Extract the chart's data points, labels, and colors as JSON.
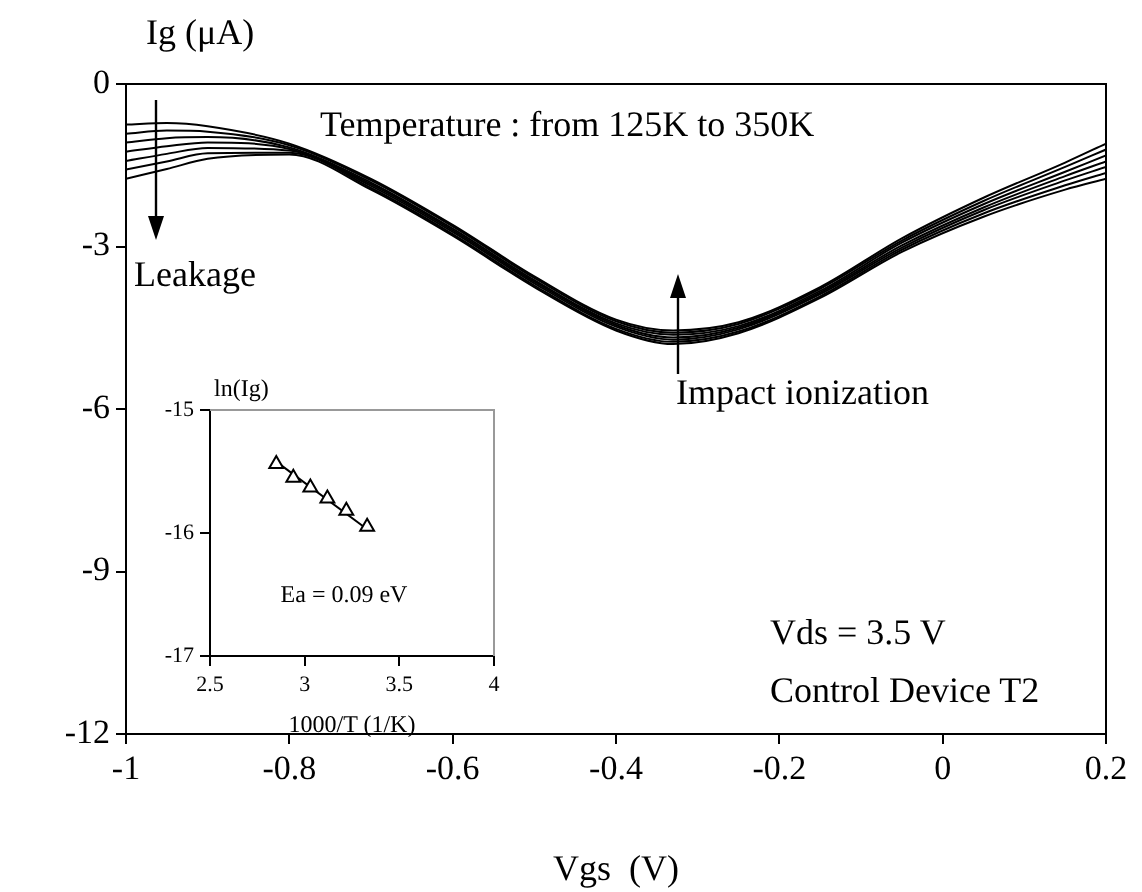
{
  "chart_data": [
    {
      "type": "line",
      "xlabel": "Vgs  (V)",
      "ylabel": "Ig (μA)",
      "annotations": [
        "Temperature : from 125K to 350K",
        "Leakage",
        "Impact ionization",
        "Vds = 3.5 V",
        "Control Device T2"
      ],
      "x": [
        -1,
        -0.95,
        -0.9,
        -0.8,
        -0.7,
        -0.6,
        -0.5,
        -0.4,
        -0.33,
        -0.25,
        -0.15,
        -0.05,
        0.05,
        0.15,
        0.2
      ],
      "xlim": [
        -1,
        0.2
      ],
      "xticks": [
        -1,
        -0.8,
        -0.6,
        -0.4,
        -0.2,
        0,
        0.2
      ],
      "ylim": [
        -12,
        0
      ],
      "yticks": [
        -12,
        -9,
        -6,
        -3,
        0
      ],
      "grid": false,
      "legend": false,
      "marker": "none",
      "line_style": "solid",
      "series": [
        {
          "color": "#000000",
          "values": [
            -0.75,
            -0.72,
            -0.78,
            -1.1,
            -1.75,
            -2.6,
            -3.55,
            -4.35,
            -4.55,
            -4.4,
            -3.75,
            -2.85,
            -2.1,
            -1.45,
            -1.1
          ]
        },
        {
          "color": "#000000",
          "values": [
            -0.92,
            -0.86,
            -0.88,
            -1.13,
            -1.78,
            -2.63,
            -3.58,
            -4.38,
            -4.59,
            -4.43,
            -3.78,
            -2.89,
            -2.16,
            -1.53,
            -1.21
          ]
        },
        {
          "color": "#000000",
          "values": [
            -1.08,
            -1.0,
            -0.98,
            -1.17,
            -1.82,
            -2.67,
            -3.62,
            -4.42,
            -4.63,
            -4.47,
            -3.82,
            -2.93,
            -2.22,
            -1.62,
            -1.32
          ]
        },
        {
          "color": "#000000",
          "values": [
            -1.25,
            -1.15,
            -1.08,
            -1.2,
            -1.85,
            -2.7,
            -3.65,
            -4.45,
            -4.68,
            -4.5,
            -3.85,
            -2.98,
            -2.28,
            -1.7,
            -1.43
          ]
        },
        {
          "color": "#000000",
          "values": [
            -1.42,
            -1.29,
            -1.18,
            -1.23,
            -1.88,
            -2.73,
            -3.68,
            -4.48,
            -4.72,
            -4.53,
            -3.88,
            -3.02,
            -2.33,
            -1.78,
            -1.53
          ]
        },
        {
          "color": "#000000",
          "values": [
            -1.58,
            -1.43,
            -1.28,
            -1.27,
            -1.92,
            -2.77,
            -3.72,
            -4.52,
            -4.76,
            -4.57,
            -3.92,
            -3.06,
            -2.39,
            -1.87,
            -1.64
          ]
        },
        {
          "color": "#000000",
          "values": [
            -1.75,
            -1.57,
            -1.38,
            -1.3,
            -1.95,
            -2.8,
            -3.75,
            -4.55,
            -4.8,
            -4.6,
            -3.95,
            -3.1,
            -2.45,
            -1.95,
            -1.75
          ]
        }
      ]
    },
    {
      "type": "scatter",
      "xlabel": "1000/T (1/K)",
      "ylabel": "ln(Ig)",
      "annotations": [
        "Ea = 0.09 eV"
      ],
      "xlim": [
        2.5,
        4
      ],
      "xticks": [
        2.5,
        3,
        3.5,
        4
      ],
      "ylim": [
        -17,
        -15
      ],
      "yticks": [
        -17,
        -16,
        -15
      ],
      "grid": false,
      "legend": false,
      "line_style": "solid",
      "series": [
        {
          "marker": "triangle",
          "color": "#000000",
          "x": [
            2.85,
            2.94,
            3.03,
            3.12,
            3.22,
            3.33
          ],
          "values": [
            -15.44,
            -15.55,
            -15.63,
            -15.72,
            -15.82,
            -15.95
          ]
        },
        {
          "type": "line",
          "marker": "none",
          "color": "#000000",
          "x": [
            2.85,
            3.33
          ],
          "values": [
            -15.42,
            -15.97
          ]
        }
      ]
    }
  ]
}
